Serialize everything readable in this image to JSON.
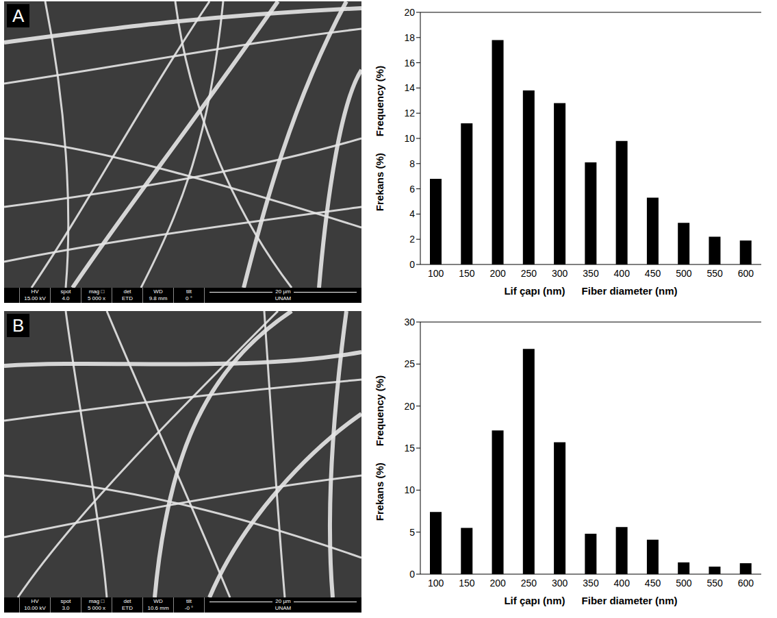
{
  "chart_data": [
    {
      "type": "bar",
      "categories": [
        "100",
        "150",
        "200",
        "250",
        "300",
        "350",
        "400",
        "450",
        "500",
        "550",
        "600"
      ],
      "values": [
        6.8,
        11.2,
        17.8,
        13.8,
        12.8,
        8.1,
        9.8,
        5.3,
        3.3,
        2.2,
        1.9
      ],
      "color": "#000000",
      "ylim": [
        0,
        20
      ],
      "yticks": [
        0,
        2,
        4,
        6,
        8,
        10,
        12,
        14,
        16,
        18,
        20
      ],
      "grid": false,
      "xlabel": [
        "Lif çapı (nm)",
        "Fiber diameter (nm)"
      ],
      "ylabel": [
        "Frekans (%)",
        "Frequency (%)"
      ]
    },
    {
      "type": "bar",
      "categories": [
        "100",
        "150",
        "200",
        "250",
        "300",
        "350",
        "400",
        "450",
        "500",
        "550",
        "600"
      ],
      "values": [
        7.4,
        5.5,
        17.1,
        26.8,
        15.7,
        4.8,
        5.6,
        4.1,
        1.4,
        0.9,
        1.3
      ],
      "color": "#000000",
      "ylim": [
        0,
        30
      ],
      "yticks": [
        0,
        5,
        10,
        15,
        20,
        25,
        30
      ],
      "grid": false,
      "xlabel": [
        "Lif çapı (nm)",
        "Fiber diameter (nm)"
      ],
      "ylabel": [
        "Frekans (%)",
        "Frequency (%)"
      ]
    }
  ],
  "images": [
    {
      "label": "A",
      "info_bar": {
        "fields": [
          {
            "name": "HV",
            "value": "15.00 kV"
          },
          {
            "name": "spot",
            "value": "4.0"
          },
          {
            "name": "mag □",
            "value": "5 000 x"
          },
          {
            "name": "det",
            "value": "ETD"
          },
          {
            "name": "WD",
            "value": "9.8 mm"
          },
          {
            "name": "tilt",
            "value": "0 °"
          }
        ],
        "scale_bar": "20 µm",
        "institution": "UNAM"
      }
    },
    {
      "label": "B",
      "info_bar": {
        "fields": [
          {
            "name": "HV",
            "value": "10.00 kV"
          },
          {
            "name": "spot",
            "value": "3.0"
          },
          {
            "name": "mag □",
            "value": "5 000 x"
          },
          {
            "name": "det",
            "value": "ETD"
          },
          {
            "name": "WD",
            "value": "10.6 mm"
          },
          {
            "name": "tilt",
            "value": "-0 °"
          }
        ],
        "scale_bar": "20 µm",
        "institution": "UNAM"
      }
    }
  ]
}
